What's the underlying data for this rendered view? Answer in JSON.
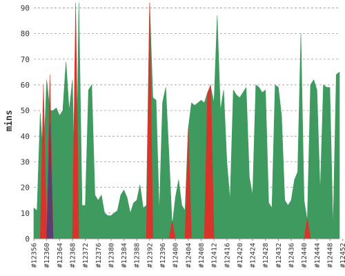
{
  "chart_data": {
    "type": "area",
    "ylabel": "mins",
    "xlabel": "",
    "title": "",
    "ylim": [
      0,
      92
    ],
    "yticks": [
      0,
      10,
      20,
      30,
      40,
      50,
      60,
      70,
      80,
      90
    ],
    "grid": true,
    "build_start": 12356,
    "xtick_labels": [
      "#12356",
      "#12360",
      "#12364",
      "#12368",
      "#12372",
      "#12376",
      "#12380",
      "#12384",
      "#12388",
      "#12392",
      "#12396",
      "#12400",
      "#12404",
      "#12408",
      "#12412",
      "#12416",
      "#12420",
      "#12424",
      "#12428",
      "#12432",
      "#12436",
      "#12440",
      "#12444",
      "#12448",
      "#12452"
    ],
    "series": [
      {
        "color": "#3e9a5e",
        "values": [
          12,
          11,
          49,
          30,
          62,
          50,
          50,
          51,
          48,
          50,
          69,
          50,
          62,
          2,
          94,
          13,
          13,
          58,
          60,
          17,
          15,
          17,
          10,
          9,
          9,
          10,
          11,
          17,
          19,
          16,
          10,
          14,
          15,
          21,
          12,
          13,
          94,
          55,
          54,
          10,
          53,
          59,
          33,
          5,
          16,
          23,
          13,
          11,
          43,
          53,
          52,
          53,
          54,
          53,
          57,
          59,
          53,
          87,
          50,
          58,
          30,
          15,
          58,
          56,
          55,
          57,
          59,
          24,
          17,
          60,
          59,
          57,
          58,
          14,
          12,
          60,
          59,
          48,
          15,
          13,
          15,
          23,
          26,
          80,
          15,
          7,
          60,
          62,
          58,
          18,
          60,
          59,
          59,
          4,
          64,
          65
        ]
      },
      {
        "color": "#d8342c",
        "values": [
          0,
          0,
          0,
          60,
          0,
          64,
          0,
          0,
          0,
          0,
          0,
          0,
          0,
          94,
          0,
          0,
          0,
          0,
          0,
          0,
          0,
          0,
          0,
          0,
          0,
          0,
          0,
          0,
          0,
          0,
          0,
          0,
          0,
          0,
          0,
          0,
          94,
          0,
          0,
          0,
          0,
          0,
          0,
          7,
          0,
          0,
          0,
          0,
          43,
          0,
          0,
          0,
          0,
          0,
          57,
          60,
          0,
          0,
          0,
          0,
          0,
          0,
          0,
          0,
          0,
          0,
          0,
          0,
          0,
          0,
          0,
          0,
          0,
          0,
          0,
          0,
          0,
          0,
          0,
          0,
          0,
          0,
          0,
          0,
          0,
          8,
          0,
          0,
          0,
          0,
          0,
          0,
          0,
          0,
          0,
          0
        ]
      },
      {
        "color": "#5a3e72",
        "values": [
          0,
          0,
          0,
          0,
          0,
          45,
          0,
          0,
          0,
          0,
          0,
          0,
          0,
          0,
          0,
          0,
          0,
          0,
          0,
          0,
          0,
          0,
          0,
          0,
          0,
          0,
          0,
          0,
          0,
          0,
          0,
          0,
          0,
          0,
          0,
          0,
          0,
          0,
          0,
          0,
          0,
          0,
          0,
          0,
          0,
          0,
          0,
          0,
          0,
          0,
          0,
          0,
          0,
          0,
          0,
          0,
          0,
          0,
          0,
          0,
          0,
          0,
          0,
          0,
          0,
          0,
          0,
          0,
          0,
          0,
          0,
          0,
          0,
          0,
          0,
          0,
          0,
          0,
          0,
          0,
          0,
          0,
          0,
          0,
          0,
          0,
          0,
          0,
          0,
          0,
          0,
          0,
          0,
          0,
          0,
          0
        ]
      }
    ]
  }
}
